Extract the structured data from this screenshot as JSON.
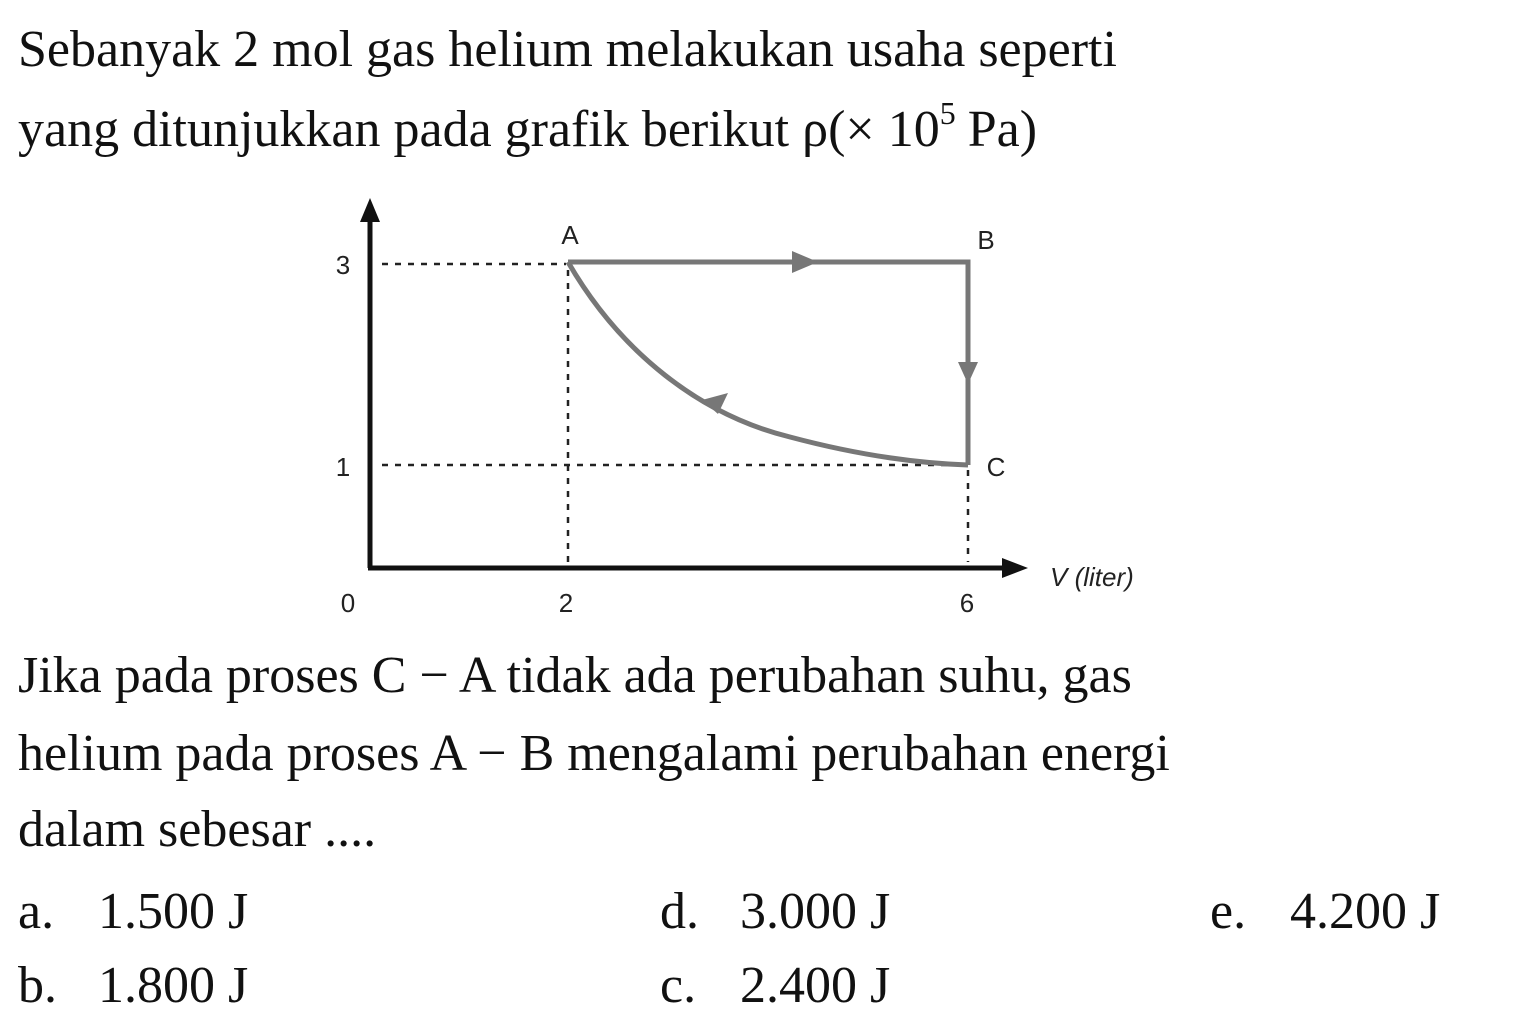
{
  "intro": {
    "lines": [
      "Sebanyak 2 mol gas helium melakukan usaha seperti",
      "yang ditunjukkan pada grafik berikut ρ(× 10"
    ],
    "exponent": "5",
    "unit": "Pa)"
  },
  "graph": {
    "y_ticks": [
      "3",
      "1"
    ],
    "x_ticks": [
      "0",
      "2",
      "6"
    ],
    "x_axis_label": "V (liter)",
    "points": [
      "A",
      "B",
      "C"
    ]
  },
  "question": {
    "lines": [
      "Jika pada proses C − A tidak ada perubahan suhu, gas",
      "helium pada proses A − B mengalami perubahan energi",
      "dalam sebesar ...."
    ]
  },
  "options": [
    {
      "letter": "a.",
      "text": "1.500 J"
    },
    {
      "letter": "d.",
      "text": "3.000 J"
    },
    {
      "letter": "e.",
      "text": "4.200 J"
    },
    {
      "letter": "b.",
      "text": "1.800 J"
    },
    {
      "letter": "c.",
      "text": "2.400 J"
    }
  ]
}
